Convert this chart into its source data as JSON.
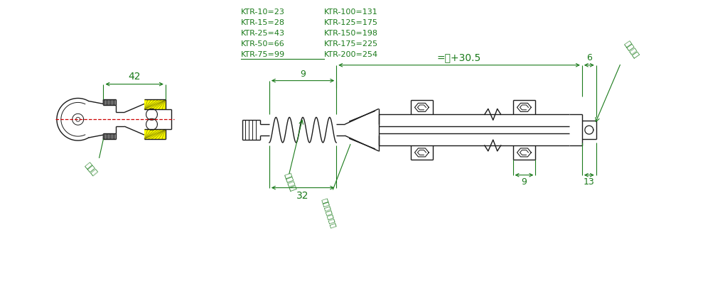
{
  "bg_color": "#ffffff",
  "dc": "#1a1a1a",
  "gc": "#1a7a1a",
  "rc": "#cc0000",
  "yc": "#ffff00",
  "ktr_left": [
    "KTR-10=23",
    "KTR-15=28",
    "KTR-25=43",
    "KTR-50=66",
    "KTR-75=99"
  ],
  "ktr_right": [
    "KTR-100=131",
    "KTR-125=175",
    "KTR-150=198",
    "KTR-175=225",
    "KTR-200=254"
  ],
  "dim_30_5": "=型+30.5",
  "dim_9t": "9",
  "dim_6": "6",
  "dim_42": "42",
  "dim_32": "32",
  "dim_9b": "9",
  "dim_13": "13",
  "lbl_head": "连接头",
  "lbl_spring": "弹簧大小",
  "lbl_cable": "电缆大小与长短",
  "lbl_mount": "安装基准"
}
